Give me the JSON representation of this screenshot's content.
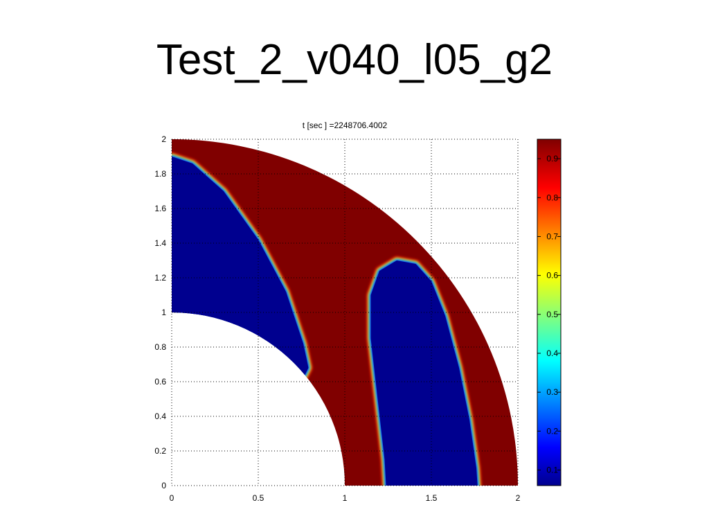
{
  "slide": {
    "title": "Test_2_v040_l05_g2"
  },
  "chart_data": {
    "type": "heatmap",
    "title": "t [sec ] =2248706.4002",
    "xlabel": "",
    "ylabel": "",
    "xlim": [
      0,
      2
    ],
    "ylim": [
      0,
      2
    ],
    "x_ticks": [
      0,
      0.5,
      1,
      1.5,
      2
    ],
    "x_tick_labels": [
      "0",
      "0.5",
      "1",
      "1.5",
      "2"
    ],
    "y_ticks": [
      0,
      0.2,
      0.4,
      0.6,
      0.8,
      1,
      1.2,
      1.4,
      1.6,
      1.8,
      2
    ],
    "y_tick_labels": [
      "0",
      "0.2",
      "0.4",
      "0.6",
      "0.8",
      "1",
      "1.2",
      "1.4",
      "1.6",
      "1.8",
      "2"
    ],
    "grid": "dotted",
    "domain": {
      "shape": "quarter-annulus",
      "inner_radius": 1,
      "outer_radius": 2
    },
    "field_description": "High value (~0.95) background in the annulus; two low-value (~0.05) regions: one along the inner edge spanning angles ~38°-90° near radius 1.0-1.9, one elongated blob centered near x≈1.5 from y=0 up to y≈1.3",
    "field_min": 0.05,
    "field_max": 0.95,
    "colorbar": {
      "colormap": "jet",
      "range": [
        0.06,
        0.95
      ],
      "ticks": [
        0.1,
        0.2,
        0.3,
        0.4,
        0.5,
        0.6,
        0.7,
        0.8,
        0.9
      ],
      "tick_labels": [
        "0.1",
        "0.2",
        "0.3",
        "0.4",
        "0.5",
        "0.6",
        "0.7",
        "0.8",
        "0.9"
      ]
    },
    "colors": {
      "high": "#800000",
      "low": "#00008f"
    }
  }
}
